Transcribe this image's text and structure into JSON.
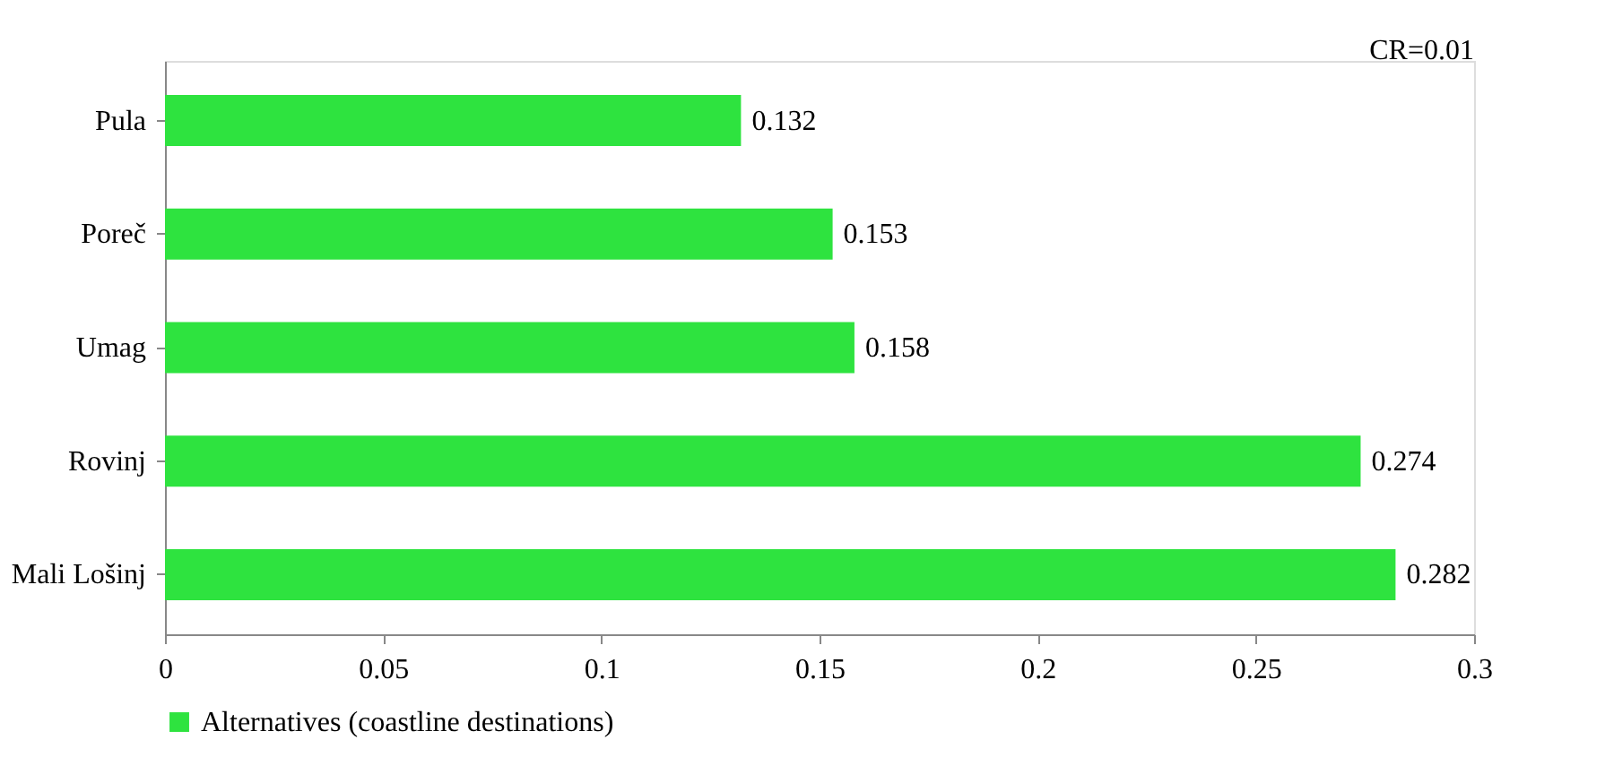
{
  "chart_data": {
    "type": "bar",
    "orientation": "horizontal",
    "categories": [
      "Pula",
      "Poreč",
      "Umag",
      "Rovinj",
      "Mali Lošinj"
    ],
    "series": [
      {
        "name": "Alternatives (coastline destinations)",
        "color": "#2ee33f",
        "values": [
          0.132,
          0.153,
          0.158,
          0.274,
          0.282
        ]
      }
    ],
    "xlim": [
      0,
      0.3
    ],
    "xticks": [
      0,
      0.05,
      0.1,
      0.15,
      0.2,
      0.25,
      0.3
    ],
    "data_labels": true,
    "grid": false,
    "legend": "bottom",
    "annotations": [
      "CR=0.01"
    ]
  }
}
